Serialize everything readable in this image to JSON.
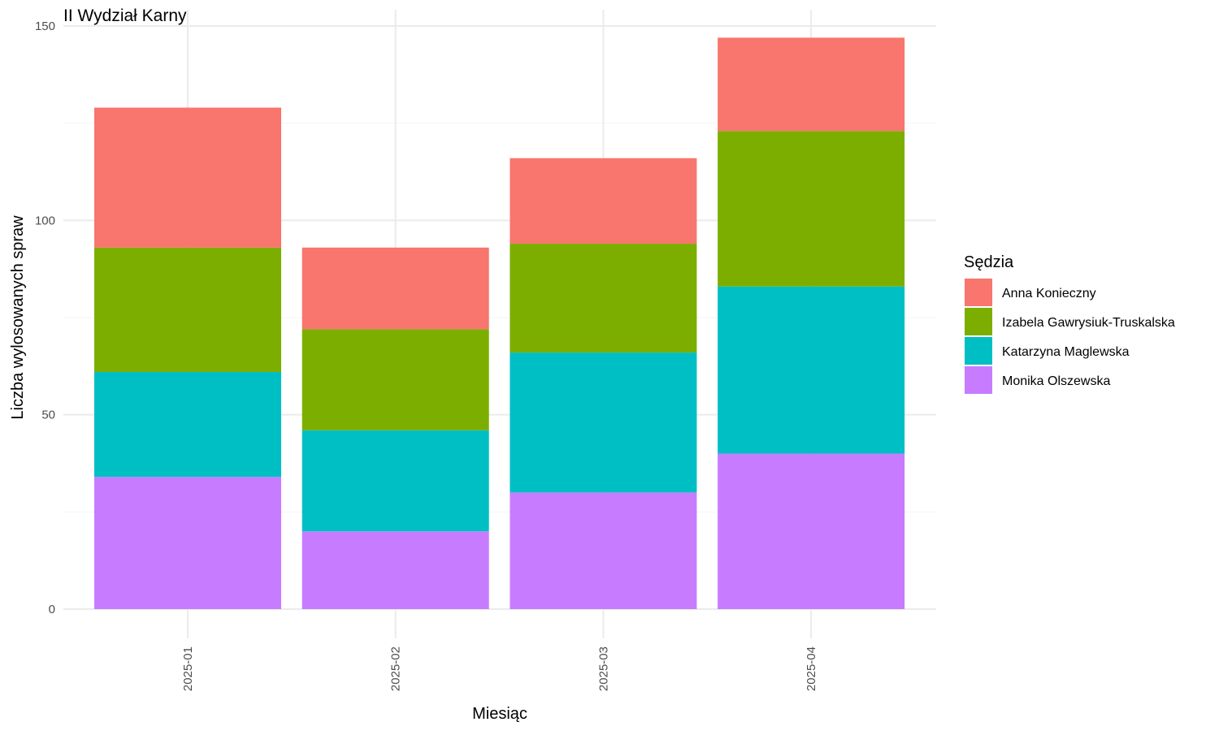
{
  "chart_data": {
    "type": "bar",
    "stacked": true,
    "title": "II Wydział Karny",
    "xlabel": "Miesiąc",
    "ylabel": "Liczba wylosowanych spraw",
    "categories": [
      "2025-01",
      "2025-02",
      "2025-03",
      "2025-04"
    ],
    "ylim": [
      0,
      150
    ],
    "y_ticks": [
      "0",
      "50",
      "100",
      "150"
    ],
    "grid": true,
    "legend": {
      "title": "Sędzia",
      "position": "right"
    },
    "series": [
      {
        "name": "Monika Olszewska",
        "color": "#C77CFF",
        "values": [
          34,
          20,
          30,
          40
        ]
      },
      {
        "name": "Katarzyna Maglewska",
        "color": "#00BFC4",
        "values": [
          27,
          26,
          36,
          43
        ]
      },
      {
        "name": "Izabela Gawrysiuk-Truskalska",
        "color": "#7CAE00",
        "values": [
          32,
          26,
          28,
          40
        ]
      },
      {
        "name": "Anna Konieczny",
        "color": "#F8766D",
        "values": [
          36,
          21,
          22,
          24
        ]
      }
    ]
  }
}
